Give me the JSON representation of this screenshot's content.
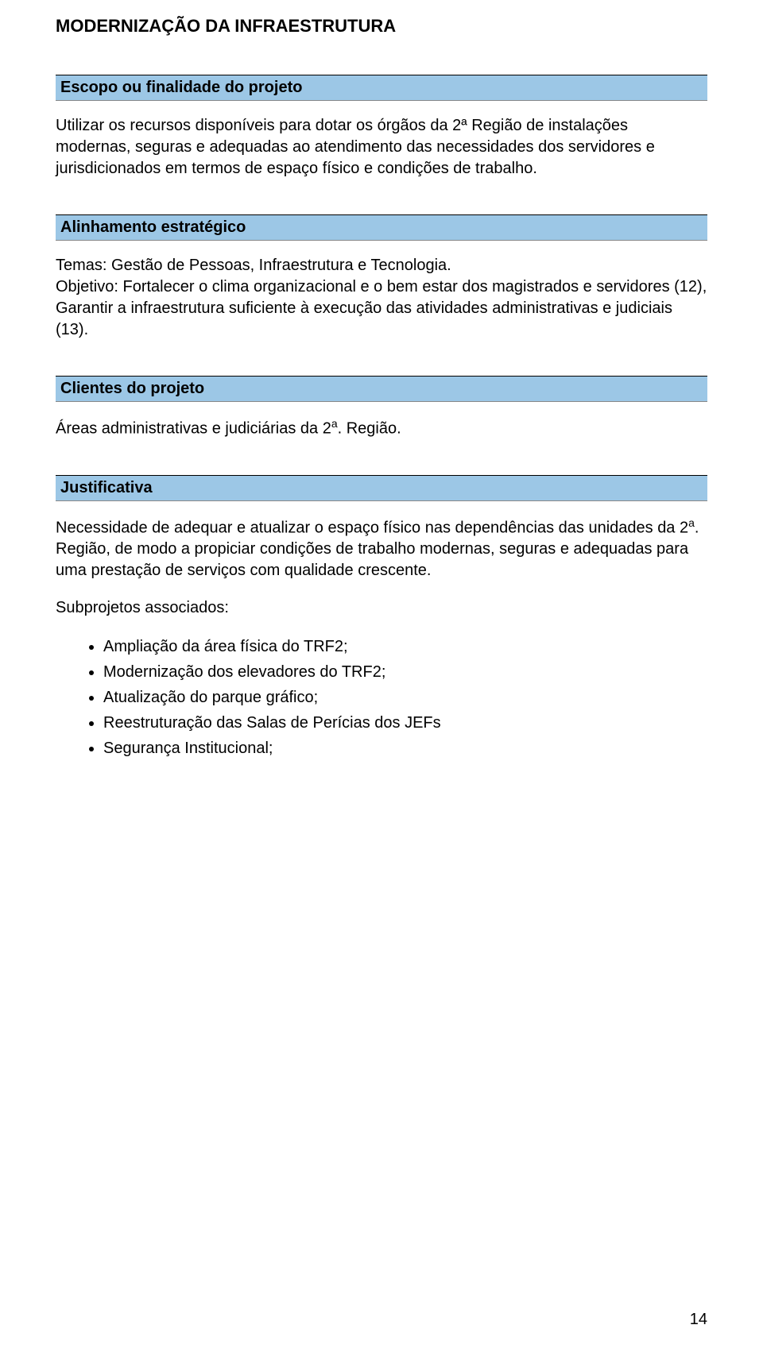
{
  "colors": {
    "section_header_bg": "#9cc7e6",
    "text": "#000000",
    "page_bg": "#ffffff"
  },
  "title": "MODERNIZAÇÃO DA INFRAESTRUTURA",
  "sections": {
    "escopo": {
      "header": "Escopo ou finalidade do projeto",
      "body": "Utilizar os recursos disponíveis para dotar os órgãos da 2ª Região de instalações modernas, seguras e adequadas ao atendimento das necessidades dos servidores e jurisdicionados em termos de espaço físico e condições de trabalho."
    },
    "alinhamento": {
      "header": "Alinhamento estratégico",
      "body": "Temas: Gestão de Pessoas, Infraestrutura e Tecnologia.\nObjetivo: Fortalecer o clima organizacional e o bem estar dos magistrados e servidores (12), Garantir a infraestrutura suficiente à execução das atividades administrativas e judiciais (13)."
    },
    "clientes": {
      "header": "Clientes do projeto",
      "body_pre": "Áreas administrativas e judiciárias da 2",
      "body_sup": "a",
      "body_post": ". Região."
    },
    "justificativa": {
      "header": "Justificativa",
      "para1_pre": "Necessidade de adequar e atualizar o espaço físico nas dependências das unidades da 2",
      "para1_sup": "a",
      "para1_post": ". Região, de modo a propiciar condições de trabalho modernas, seguras e adequadas para uma prestação de serviços com qualidade crescente.",
      "para2": "Subprojetos associados:",
      "bullets": [
        "Ampliação da área física do TRF2;",
        "Modernização dos elevadores do TRF2;",
        "Atualização do parque gráfico;",
        "Reestruturação das Salas de Perícias dos JEFs",
        "Segurança Institucional;"
      ]
    }
  },
  "page_number": "14"
}
